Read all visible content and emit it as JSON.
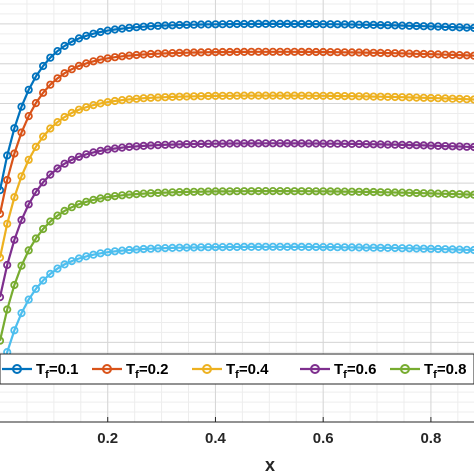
{
  "chart_data": {
    "type": "line",
    "xlabel": "x",
    "ylabel": "",
    "xlim": [
      0,
      0.88
    ],
    "ylim": [
      0,
      1.06
    ],
    "grid": true,
    "minor_grid": true,
    "legend_placement": "bottom",
    "x_ticks": [
      "0.2",
      "0.4",
      "0.6",
      "0.8"
    ],
    "x_tick_values": [
      0.2,
      0.4,
      0.6,
      0.8
    ],
    "series": [
      {
        "name": "T",
        "sub": "f",
        "suffix": "=0.1",
        "color": "#0072BD",
        "values": {
          "plateau": 1.0,
          "start": 0.6
        }
      },
      {
        "name": "T",
        "sub": "f",
        "suffix": "=0.2",
        "color": "#D95319",
        "values": {
          "plateau": 0.93,
          "start": 0.54
        }
      },
      {
        "name": "T",
        "sub": "f",
        "suffix": "=0.4",
        "color": "#EDB120",
        "values": {
          "plateau": 0.82,
          "start": 0.43
        }
      },
      {
        "name": "T",
        "sub": "f",
        "suffix": "=0.6",
        "color": "#7E2F8E",
        "values": {
          "plateau": 0.7,
          "start": 0.33
        }
      },
      {
        "name": "T",
        "sub": "f",
        "suffix": "=0.8",
        "color": "#77AC30",
        "values": {
          "plateau": 0.58,
          "start": 0.22
        }
      },
      {
        "name": "",
        "sub": "",
        "suffix": "",
        "color": "#4DBEEE",
        "values": {
          "plateau": 0.44,
          "start": 0.12
        }
      }
    ]
  }
}
